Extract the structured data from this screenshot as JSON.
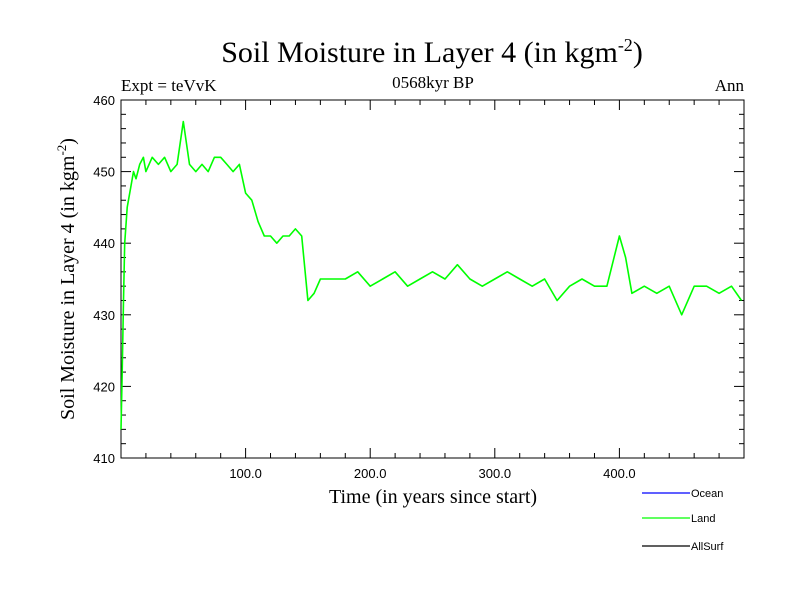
{
  "chart_data": {
    "type": "line",
    "title_main": "Soil Moisture in Layer 4 (in kgm",
    "title_sup": "-2",
    "title_close": ")",
    "subtitle_left": "Expt = teVvK",
    "subtitle_center": "0568kyr BP",
    "subtitle_right": "Ann",
    "xlabel": "Time (in years since start)",
    "ylabel_main": "Soil Moisture in Layer 4 (in kgm",
    "ylabel_sup": "-2",
    "ylabel_close": ")",
    "xlim": [
      0,
      500
    ],
    "ylim": [
      410,
      460
    ],
    "xticks": [
      100,
      200,
      300,
      400
    ],
    "xtick_labels": [
      "100.0",
      "200.0",
      "300.0",
      "400.0"
    ],
    "yticks": [
      410,
      420,
      430,
      440,
      450,
      460
    ],
    "ytick_labels": [
      "410",
      "420",
      "430",
      "440",
      "450",
      "460"
    ],
    "legend_position": "bottom-right, outside plot",
    "series": [
      {
        "name": "Ocean",
        "color": "#0000ff",
        "values": []
      },
      {
        "name": "Land",
        "color": "#00ff00",
        "x": [
          0,
          1,
          2,
          3,
          5,
          8,
          10,
          12,
          15,
          18,
          20,
          25,
          30,
          35,
          40,
          45,
          50,
          55,
          60,
          65,
          70,
          75,
          80,
          85,
          90,
          95,
          100,
          105,
          110,
          115,
          120,
          125,
          130,
          135,
          140,
          145,
          150,
          155,
          160,
          170,
          180,
          190,
          200,
          210,
          220,
          230,
          240,
          250,
          260,
          270,
          280,
          290,
          300,
          310,
          320,
          330,
          340,
          350,
          360,
          370,
          380,
          390,
          400,
          405,
          410,
          420,
          430,
          440,
          450,
          460,
          470,
          480,
          490,
          498
        ],
        "y": [
          414,
          422,
          432,
          440,
          445,
          448,
          450,
          449,
          451,
          452,
          450,
          452,
          451,
          452,
          450,
          451,
          457,
          451,
          450,
          451,
          450,
          452,
          452,
          451,
          450,
          451,
          447,
          446,
          443,
          441,
          441,
          440,
          441,
          441,
          442,
          441,
          432,
          433,
          435,
          435,
          435,
          436,
          434,
          435,
          436,
          434,
          435,
          436,
          435,
          437,
          435,
          434,
          435,
          436,
          435,
          434,
          435,
          432,
          434,
          435,
          434,
          434,
          441,
          438,
          433,
          434,
          433,
          434,
          430,
          434,
          434,
          433,
          434,
          432
        ]
      },
      {
        "name": "AllSurf",
        "color": "#000000",
        "values": []
      }
    ]
  }
}
